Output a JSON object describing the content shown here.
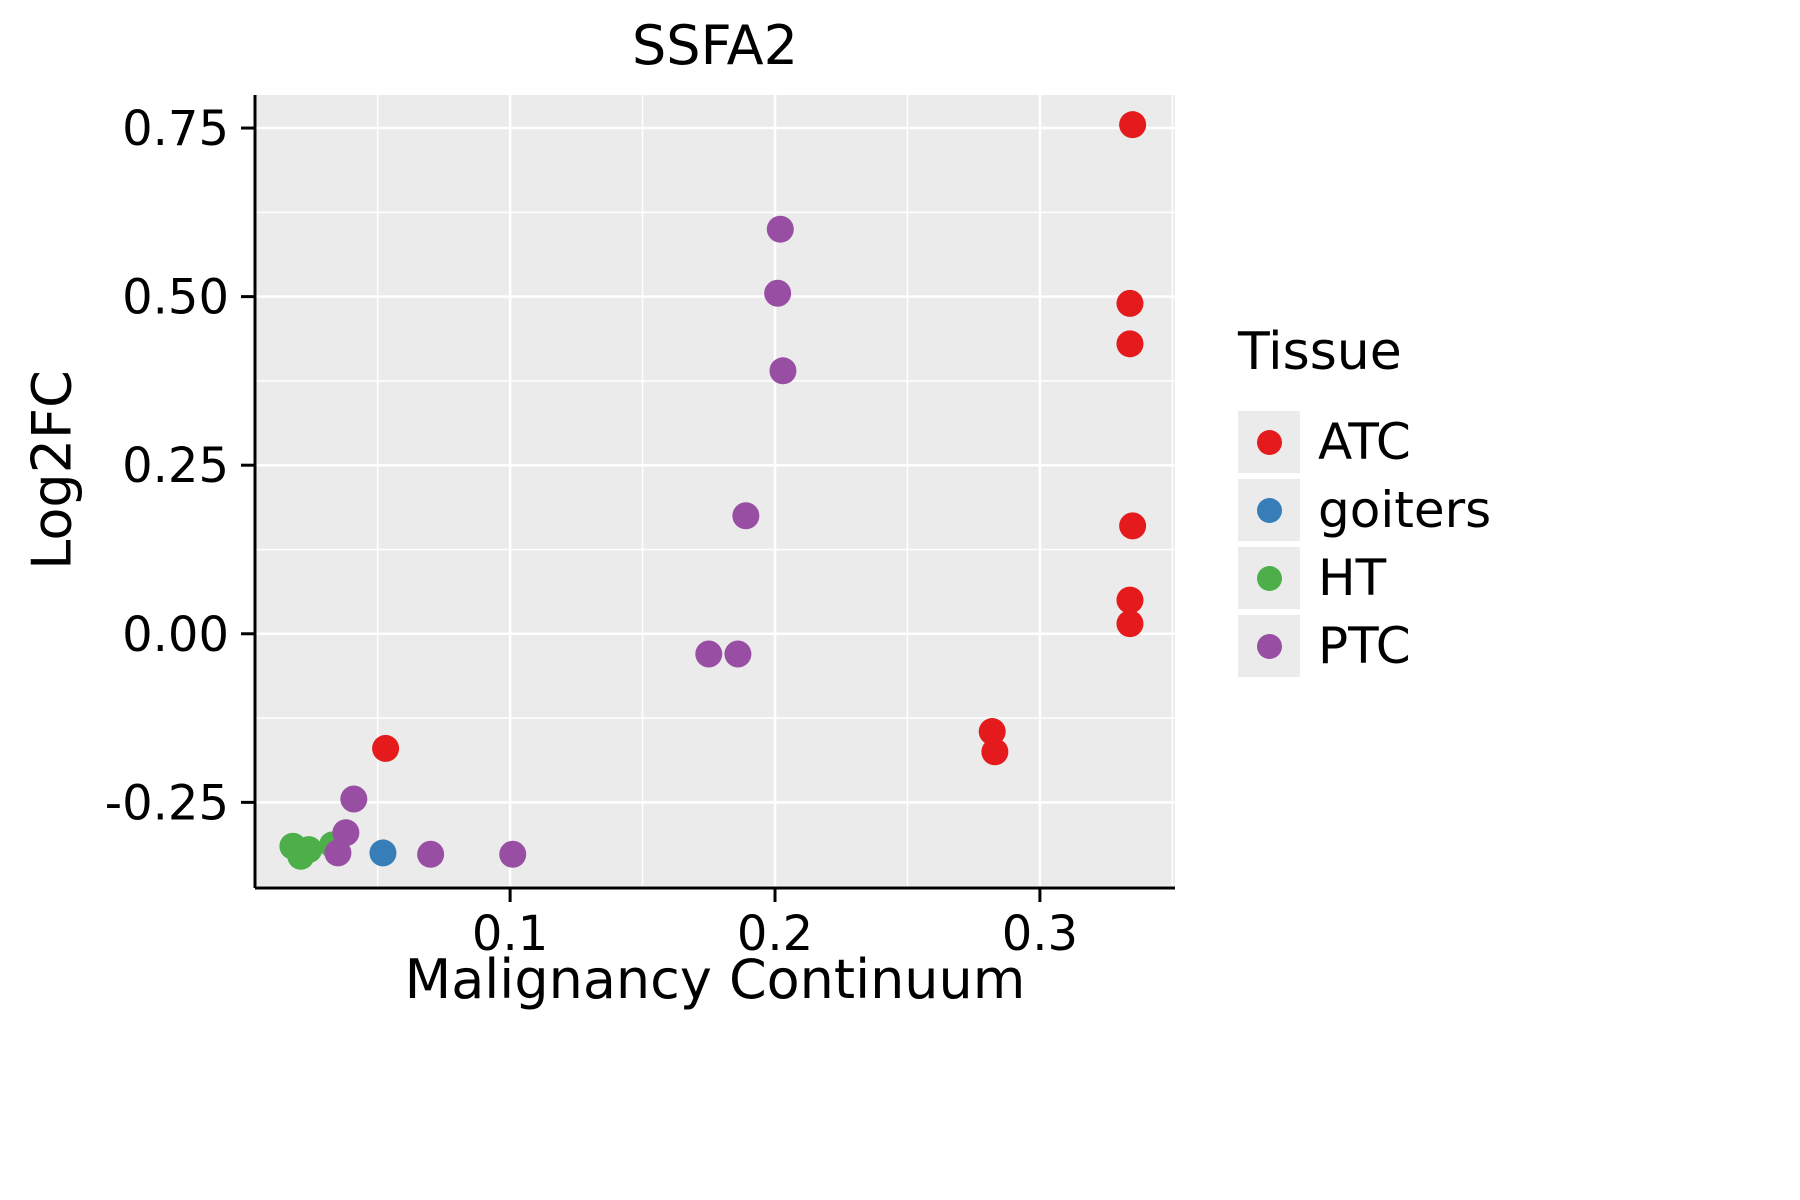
{
  "chart_data": {
    "type": "scatter",
    "title": "SSFA2",
    "xlabel": "Malignancy Continuum",
    "ylabel": "Log2FC",
    "xlim": [
      0.0037,
      0.351
    ],
    "ylim": [
      -0.377,
      0.799
    ],
    "x_tick_values": [
      0.1,
      0.2,
      0.3
    ],
    "x_tick_labels": [
      "0.1",
      "0.2",
      "0.3"
    ],
    "x_minor_gridlines": [
      0.05,
      0.15,
      0.25,
      0.35
    ],
    "y_tick_values": [
      -0.25,
      0.0,
      0.25,
      0.5,
      0.75
    ],
    "y_tick_labels": [
      "-0.25",
      "0.00",
      "0.25",
      "0.50",
      "0.75"
    ],
    "y_minor_gridlines": [
      -0.375,
      -0.125,
      0.125,
      0.375,
      0.625
    ],
    "panel_bg": "#EBEBEB",
    "grid_color": "#FFFFFF",
    "axis_color": "#000000",
    "point_radius": 13.5,
    "grid_on": true,
    "legend": {
      "title": "Tissue",
      "position": "right"
    },
    "series": [
      {
        "name": "ATC",
        "color": "#E41A1C",
        "points": [
          [
            0.335,
            0.755
          ],
          [
            0.334,
            0.49
          ],
          [
            0.334,
            0.43
          ],
          [
            0.335,
            0.16
          ],
          [
            0.334,
            0.05
          ],
          [
            0.334,
            0.015
          ],
          [
            0.282,
            -0.145
          ],
          [
            0.283,
            -0.175
          ],
          [
            0.053,
            -0.17
          ]
        ]
      },
      {
        "name": "goiters",
        "color": "#377EB8",
        "points": [
          [
            0.052,
            -0.325
          ]
        ]
      },
      {
        "name": "HT",
        "color": "#4DAF4A",
        "points": [
          [
            0.018,
            -0.315
          ],
          [
            0.021,
            -0.33
          ],
          [
            0.024,
            -0.32
          ],
          [
            0.033,
            -0.313
          ]
        ]
      },
      {
        "name": "PTC",
        "color": "#984EA3",
        "points": [
          [
            0.202,
            0.6
          ],
          [
            0.201,
            0.505
          ],
          [
            0.203,
            0.39
          ],
          [
            0.189,
            0.175
          ],
          [
            0.175,
            -0.03
          ],
          [
            0.186,
            -0.03
          ],
          [
            0.041,
            -0.245
          ],
          [
            0.038,
            -0.295
          ],
          [
            0.035,
            -0.325
          ],
          [
            0.07,
            -0.327
          ],
          [
            0.101,
            -0.327
          ]
        ]
      }
    ]
  }
}
